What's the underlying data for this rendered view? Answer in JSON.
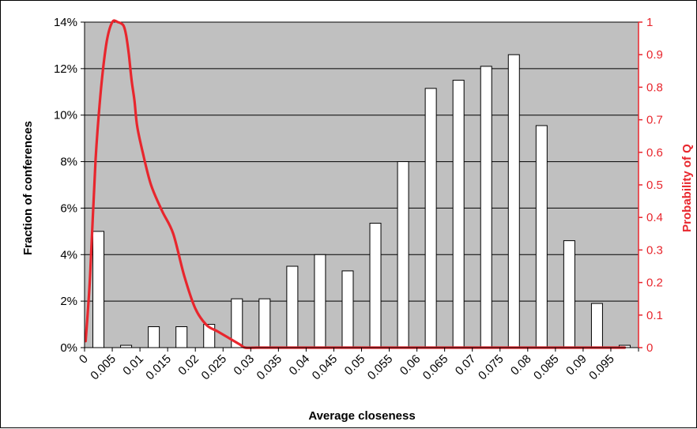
{
  "chart_data": {
    "type": "bar",
    "xlabel": "Average closeness",
    "ylabel_left": "Fraction of conferences",
    "ylabel_right": "Probability of Q",
    "x_tick_labels": [
      "0",
      "0.005",
      "0.01",
      "0.015",
      "0.02",
      "0.025",
      "0.03",
      "0.035",
      "0.04",
      "0.045",
      "0.05",
      "0.055",
      "0.06",
      "0.065",
      "0.07",
      "0.075",
      "0.08",
      "0.085",
      "0.09",
      "0.095"
    ],
    "y_left_ticks": [
      "0%",
      "2%",
      "4%",
      "6%",
      "8%",
      "10%",
      "12%",
      "14%"
    ],
    "y_left_lim": [
      0,
      14
    ],
    "y_right_ticks": [
      "0",
      "0.1",
      "0.2",
      "0.3",
      "0.4",
      "0.5",
      "0.6",
      "0.7",
      "0.8",
      "0.9",
      "1"
    ],
    "y_right_lim": [
      0,
      1
    ],
    "grid": true,
    "series": [
      {
        "axis": "left",
        "style": "bar",
        "color": "#ffffff",
        "values": [
          5.0,
          0.1,
          0.9,
          0.9,
          1.0,
          2.1,
          2.1,
          3.5,
          4.0,
          3.3,
          5.35,
          8.0,
          11.15,
          11.5,
          12.1,
          12.6,
          9.55,
          4.6,
          1.9,
          0.1
        ]
      },
      {
        "axis": "right",
        "style": "line",
        "color": "#e8262d",
        "x": [
          0.0002,
          0.001,
          0.002,
          0.003,
          0.004,
          0.005,
          0.006,
          0.007,
          0.0075,
          0.008,
          0.0085,
          0.009,
          0.0095,
          0.0105,
          0.012,
          0.014,
          0.016,
          0.018,
          0.02,
          0.022,
          0.024,
          0.026,
          0.028,
          0.029,
          0.031,
          0.033,
          0.035,
          0.036,
          0.037,
          0.04,
          0.05,
          0.06,
          0.07,
          0.08,
          0.09,
          0.0975
        ],
        "values": [
          0.02,
          0.22,
          0.58,
          0.8,
          0.94,
          1.0,
          1.0,
          0.99,
          0.96,
          0.9,
          0.82,
          0.76,
          0.68,
          0.6,
          0.5,
          0.42,
          0.35,
          0.22,
          0.12,
          0.07,
          0.05,
          0.03,
          0.01,
          0.0,
          0.0,
          0.0,
          0.0,
          0.0,
          0.0,
          0.0,
          0.0,
          0.0,
          0.0,
          0.0,
          0.0,
          0.0
        ]
      }
    ]
  }
}
